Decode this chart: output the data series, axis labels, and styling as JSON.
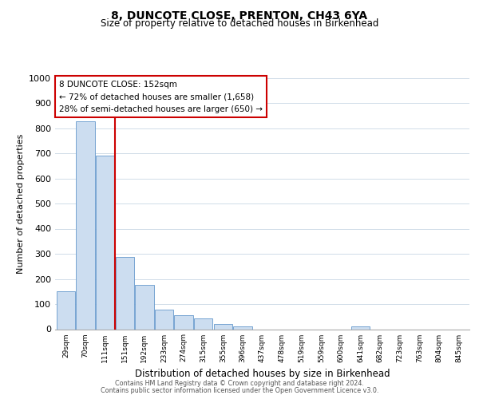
{
  "title1": "8, DUNCOTE CLOSE, PRENTON, CH43 6YA",
  "title2": "Size of property relative to detached houses in Birkenhead",
  "xlabel": "Distribution of detached houses by size in Birkenhead",
  "ylabel": "Number of detached properties",
  "bar_labels": [
    "29sqm",
    "70sqm",
    "111sqm",
    "151sqm",
    "192sqm",
    "233sqm",
    "274sqm",
    "315sqm",
    "355sqm",
    "396sqm",
    "437sqm",
    "478sqm",
    "519sqm",
    "559sqm",
    "600sqm",
    "641sqm",
    "682sqm",
    "723sqm",
    "763sqm",
    "804sqm",
    "845sqm"
  ],
  "bar_values": [
    150,
    828,
    690,
    287,
    175,
    78,
    54,
    42,
    20,
    10,
    0,
    0,
    0,
    0,
    0,
    10,
    0,
    0,
    0,
    0,
    0
  ],
  "bar_color": "#ccddf0",
  "bar_edge_color": "#6699cc",
  "vline_x_idx": 3,
  "vline_color": "#cc0000",
  "annotation_title": "8 DUNCOTE CLOSE: 152sqm",
  "annotation_line1": "← 72% of detached houses are smaller (1,658)",
  "annotation_line2": "28% of semi-detached houses are larger (650) →",
  "annotation_box_color": "#ffffff",
  "annotation_box_edge": "#cc0000",
  "footnote1": "Contains HM Land Registry data © Crown copyright and database right 2024.",
  "footnote2": "Contains public sector information licensed under the Open Government Licence v3.0.",
  "ylim": [
    0,
    1000
  ],
  "yticks": [
    0,
    100,
    200,
    300,
    400,
    500,
    600,
    700,
    800,
    900,
    1000
  ],
  "background_color": "#ffffff",
  "grid_color": "#d0dce8"
}
